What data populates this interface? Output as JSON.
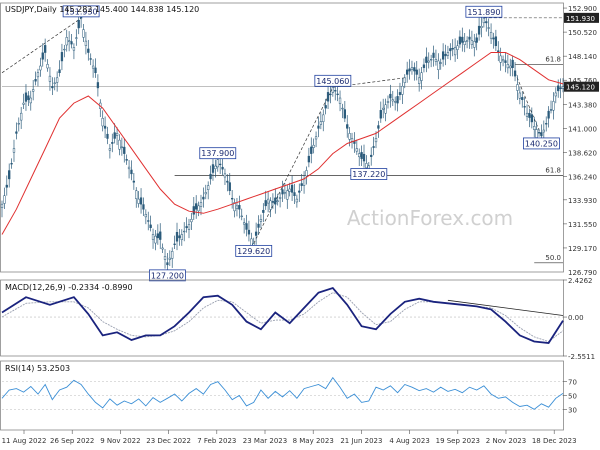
{
  "chart_data": [
    {
      "type": "candlestick",
      "title": "USDJPY,Daily  145.282 145.400 144.838 145.120",
      "ylim": [
        126.79,
        153.4
      ],
      "y_ticks": [
        129.17,
        131.55,
        133.93,
        136.24,
        138.62,
        141.0,
        143.38,
        145.76,
        148.14,
        150.52,
        152.9
      ],
      "y_tick_labels": [
        "129.170",
        "131.550",
        "133.930",
        "136.240",
        "138.620",
        "141.000",
        "143.380",
        "145.760",
        "148.140",
        "150.520",
        "152.900"
      ],
      "y_bottom_label": "126.790",
      "current_price": 145.12,
      "current_price_label": "145.120",
      "resistance_price": 151.93,
      "resistance_label": "151.930",
      "x_tick_labels": [
        "11 Aug 2022",
        "26 Sep 2022",
        "9 Nov 2022",
        "23 Dec 2022",
        "7 Feb 2023",
        "23 Mar 2023",
        "8 May 2023",
        "21 Jun 2023",
        "4 Aug 2023",
        "19 Sep 2023",
        "2 Nov 2023",
        "18 Dec 2023"
      ],
      "price_path": [
        [
          0,
          133.5
        ],
        [
          3,
          136.0
        ],
        [
          6,
          140.5
        ],
        [
          9,
          143.5
        ],
        [
          12,
          144.0
        ],
        [
          15,
          146.5
        ],
        [
          18,
          148.5
        ],
        [
          21,
          145.0
        ],
        [
          24,
          146.5
        ],
        [
          27,
          150.0
        ],
        [
          30,
          149.0
        ],
        [
          33,
          151.9
        ],
        [
          36,
          148.5
        ],
        [
          39,
          146.5
        ],
        [
          42,
          142.0
        ],
        [
          45,
          139.0
        ],
        [
          48,
          140.5
        ],
        [
          51,
          138.5
        ],
        [
          54,
          136.5
        ],
        [
          57,
          134.0
        ],
        [
          60,
          132.5
        ],
        [
          63,
          130.5
        ],
        [
          66,
          130.0
        ],
        [
          69,
          127.5
        ],
        [
          72,
          129.5
        ],
        [
          75,
          130.5
        ],
        [
          78,
          131.5
        ],
        [
          81,
          133.0
        ],
        [
          84,
          134.0
        ],
        [
          87,
          136.0
        ],
        [
          90,
          137.9
        ],
        [
          93,
          136.5
        ],
        [
          96,
          134.0
        ],
        [
          99,
          133.0
        ],
        [
          102,
          131.0
        ],
        [
          105,
          129.6
        ],
        [
          108,
          132.0
        ],
        [
          111,
          134.0
        ],
        [
          114,
          133.5
        ],
        [
          117,
          134.5
        ],
        [
          120,
          135.0
        ],
        [
          123,
          134.0
        ],
        [
          126,
          136.0
        ],
        [
          129,
          138.5
        ],
        [
          132,
          141.0
        ],
        [
          135,
          143.0
        ],
        [
          138,
          145.06
        ],
        [
          141,
          144.0
        ],
        [
          144,
          141.0
        ],
        [
          147,
          139.5
        ],
        [
          150,
          138.0
        ],
        [
          153,
          137.3
        ],
        [
          156,
          140.0
        ],
        [
          159,
          143.0
        ],
        [
          162,
          144.0
        ],
        [
          165,
          143.5
        ],
        [
          168,
          146.0
        ],
        [
          171,
          147.0
        ],
        [
          174,
          146.0
        ],
        [
          177,
          147.5
        ],
        [
          180,
          148.0
        ],
        [
          183,
          147.5
        ],
        [
          186,
          148.5
        ],
        [
          189,
          149.0
        ],
        [
          192,
          149.5
        ],
        [
          195,
          149.8
        ],
        [
          198,
          149.5
        ],
        [
          201,
          151.9
        ],
        [
          204,
          150.5
        ],
        [
          207,
          148.5
        ],
        [
          210,
          147.5
        ],
        [
          213,
          147.0
        ],
        [
          216,
          144.5
        ],
        [
          219,
          142.5
        ],
        [
          222,
          141.2
        ],
        [
          225,
          140.25
        ],
        [
          228,
          142.0
        ],
        [
          231,
          144.5
        ],
        [
          234,
          145.12
        ]
      ],
      "ma_path": [
        [
          0,
          130.5
        ],
        [
          6,
          133.0
        ],
        [
          12,
          136.0
        ],
        [
          18,
          139.0
        ],
        [
          24,
          142.0
        ],
        [
          30,
          143.5
        ],
        [
          36,
          144.2
        ],
        [
          42,
          143.0
        ],
        [
          48,
          141.0
        ],
        [
          54,
          139.0
        ],
        [
          60,
          137.0
        ],
        [
          66,
          135.0
        ],
        [
          72,
          133.5
        ],
        [
          78,
          132.8
        ],
        [
          84,
          132.6
        ],
        [
          90,
          133.0
        ],
        [
          96,
          133.5
        ],
        [
          102,
          134.0
        ],
        [
          108,
          134.5
        ],
        [
          114,
          135.0
        ],
        [
          120,
          135.5
        ],
        [
          126,
          136.0
        ],
        [
          132,
          137.0
        ],
        [
          138,
          138.5
        ],
        [
          144,
          139.5
        ],
        [
          150,
          140.0
        ],
        [
          156,
          140.5
        ],
        [
          162,
          141.5
        ],
        [
          168,
          142.5
        ],
        [
          174,
          143.5
        ],
        [
          180,
          144.5
        ],
        [
          186,
          145.5
        ],
        [
          192,
          146.5
        ],
        [
          198,
          147.5
        ],
        [
          204,
          148.5
        ],
        [
          210,
          148.5
        ],
        [
          216,
          147.8
        ],
        [
          222,
          146.8
        ],
        [
          228,
          145.8
        ],
        [
          234,
          145.4
        ]
      ],
      "trendline_upper": [
        [
          0,
          146.5
        ],
        [
          33,
          151.9
        ]
      ],
      "trendline_rising": [
        [
          105,
          129.6
        ],
        [
          138,
          145.06
        ],
        [
          168,
          146.0
        ]
      ],
      "trendline_falling": [
        [
          214,
          146.5
        ],
        [
          225,
          140.25
        ]
      ],
      "fib_levels": [
        {
          "label": "61.8",
          "price": 147.3,
          "start": 214,
          "end": 234
        },
        {
          "label": "61.8",
          "price": 136.35,
          "start": 72,
          "end": 234
        },
        {
          "label": "50.0",
          "price": 127.7,
          "start": 222,
          "end": 234
        }
      ],
      "annotations": [
        {
          "text": "151.930",
          "x": 33,
          "price": 151.93
        },
        {
          "text": "127.200",
          "x": 69,
          "price": 127.2
        },
        {
          "text": "137.900",
          "x": 90,
          "price": 137.9
        },
        {
          "text": "129.620",
          "x": 105,
          "price": 129.62
        },
        {
          "text": "145.060",
          "x": 138,
          "price": 145.06
        },
        {
          "text": "137.220",
          "x": 153,
          "price": 137.22
        },
        {
          "text": "151.890",
          "x": 201,
          "price": 151.89
        },
        {
          "text": "140.250",
          "x": 225,
          "price": 140.25
        }
      ],
      "watermark": "ActionForex.com"
    },
    {
      "type": "line",
      "title": "MACD(12,26,9) -0.2334 -0.8990",
      "ylim": [
        -2.5511,
        2.4262
      ],
      "y_ticks": [
        2.4262,
        0.0,
        -2.5511
      ],
      "y_tick_labels": [
        "2.4262",
        "0.00",
        "-2.5511"
      ],
      "macd": [
        [
          0,
          0.3
        ],
        [
          10,
          1.3
        ],
        [
          20,
          0.8
        ],
        [
          30,
          1.3
        ],
        [
          36,
          0.2
        ],
        [
          42,
          -1.2
        ],
        [
          48,
          -1.0
        ],
        [
          54,
          -1.5
        ],
        [
          60,
          -1.2
        ],
        [
          66,
          -1.2
        ],
        [
          72,
          -0.6
        ],
        [
          78,
          0.3
        ],
        [
          84,
          1.3
        ],
        [
          90,
          1.4
        ],
        [
          96,
          0.8
        ],
        [
          102,
          -0.3
        ],
        [
          108,
          -0.8
        ],
        [
          114,
          0.3
        ],
        [
          120,
          -0.4
        ],
        [
          126,
          0.6
        ],
        [
          132,
          1.6
        ],
        [
          138,
          1.9
        ],
        [
          144,
          0.8
        ],
        [
          150,
          -0.6
        ],
        [
          156,
          -0.8
        ],
        [
          162,
          0.2
        ],
        [
          168,
          1.0
        ],
        [
          174,
          1.2
        ],
        [
          180,
          1.0
        ],
        [
          186,
          0.9
        ],
        [
          192,
          0.8
        ],
        [
          198,
          0.7
        ],
        [
          204,
          0.5
        ],
        [
          210,
          -0.3
        ],
        [
          216,
          -1.2
        ],
        [
          222,
          -1.6
        ],
        [
          228,
          -1.7
        ],
        [
          234,
          -0.23
        ]
      ],
      "signal": [
        [
          0,
          0.0
        ],
        [
          10,
          0.9
        ],
        [
          20,
          1.0
        ],
        [
          30,
          1.0
        ],
        [
          36,
          0.6
        ],
        [
          42,
          -0.3
        ],
        [
          48,
          -0.8
        ],
        [
          54,
          -1.2
        ],
        [
          60,
          -1.3
        ],
        [
          66,
          -1.2
        ],
        [
          72,
          -0.9
        ],
        [
          78,
          -0.3
        ],
        [
          84,
          0.6
        ],
        [
          90,
          1.1
        ],
        [
          96,
          1.0
        ],
        [
          102,
          0.3
        ],
        [
          108,
          -0.4
        ],
        [
          114,
          -0.2
        ],
        [
          120,
          -0.2
        ],
        [
          126,
          0.2
        ],
        [
          132,
          1.0
        ],
        [
          138,
          1.6
        ],
        [
          144,
          1.3
        ],
        [
          150,
          0.3
        ],
        [
          156,
          -0.5
        ],
        [
          162,
          -0.3
        ],
        [
          168,
          0.5
        ],
        [
          174,
          1.0
        ],
        [
          180,
          1.0
        ],
        [
          186,
          0.9
        ],
        [
          192,
          0.8
        ],
        [
          198,
          0.7
        ],
        [
          204,
          0.6
        ],
        [
          210,
          0.1
        ],
        [
          216,
          -0.7
        ],
        [
          222,
          -1.3
        ],
        [
          228,
          -1.6
        ],
        [
          234,
          -0.9
        ]
      ],
      "trendline": [
        [
          186,
          1.1
        ],
        [
          234,
          0.1
        ]
      ]
    },
    {
      "type": "line",
      "title": "RSI(14) 53.2503",
      "ylim": [
        0,
        100
      ],
      "y_ticks": [
        70,
        50,
        30
      ],
      "y_tick_labels": [
        "70",
        "50",
        "30"
      ],
      "rsi": [
        [
          0,
          46
        ],
        [
          3,
          58
        ],
        [
          6,
          60
        ],
        [
          9,
          55
        ],
        [
          12,
          63
        ],
        [
          15,
          52
        ],
        [
          18,
          66
        ],
        [
          21,
          44
        ],
        [
          24,
          58
        ],
        [
          27,
          62
        ],
        [
          30,
          72
        ],
        [
          33,
          66
        ],
        [
          36,
          52
        ],
        [
          39,
          40
        ],
        [
          42,
          32
        ],
        [
          45,
          45
        ],
        [
          48,
          36
        ],
        [
          51,
          42
        ],
        [
          54,
          38
        ],
        [
          57,
          45
        ],
        [
          60,
          35
        ],
        [
          63,
          47
        ],
        [
          66,
          40
        ],
        [
          69,
          46
        ],
        [
          72,
          52
        ],
        [
          75,
          42
        ],
        [
          78,
          53
        ],
        [
          81,
          60
        ],
        [
          84,
          52
        ],
        [
          87,
          66
        ],
        [
          90,
          70
        ],
        [
          93,
          58
        ],
        [
          96,
          44
        ],
        [
          99,
          50
        ],
        [
          102,
          35
        ],
        [
          105,
          40
        ],
        [
          108,
          58
        ],
        [
          111,
          46
        ],
        [
          114,
          56
        ],
        [
          117,
          48
        ],
        [
          120,
          57
        ],
        [
          123,
          46
        ],
        [
          126,
          60
        ],
        [
          129,
          63
        ],
        [
          132,
          66
        ],
        [
          135,
          60
        ],
        [
          138,
          76
        ],
        [
          141,
          62
        ],
        [
          144,
          46
        ],
        [
          147,
          52
        ],
        [
          150,
          40
        ],
        [
          153,
          42
        ],
        [
          156,
          62
        ],
        [
          159,
          58
        ],
        [
          162,
          64
        ],
        [
          165,
          54
        ],
        [
          168,
          66
        ],
        [
          171,
          62
        ],
        [
          174,
          57
        ],
        [
          177,
          60
        ],
        [
          180,
          55
        ],
        [
          183,
          62
        ],
        [
          186,
          56
        ],
        [
          189,
          59
        ],
        [
          192,
          54
        ],
        [
          195,
          62
        ],
        [
          198,
          58
        ],
        [
          201,
          64
        ],
        [
          204,
          52
        ],
        [
          207,
          46
        ],
        [
          210,
          48
        ],
        [
          213,
          40
        ],
        [
          216,
          34
        ],
        [
          219,
          36
        ],
        [
          222,
          30
        ],
        [
          225,
          38
        ],
        [
          228,
          33
        ],
        [
          231,
          46
        ],
        [
          234,
          53
        ]
      ]
    }
  ]
}
